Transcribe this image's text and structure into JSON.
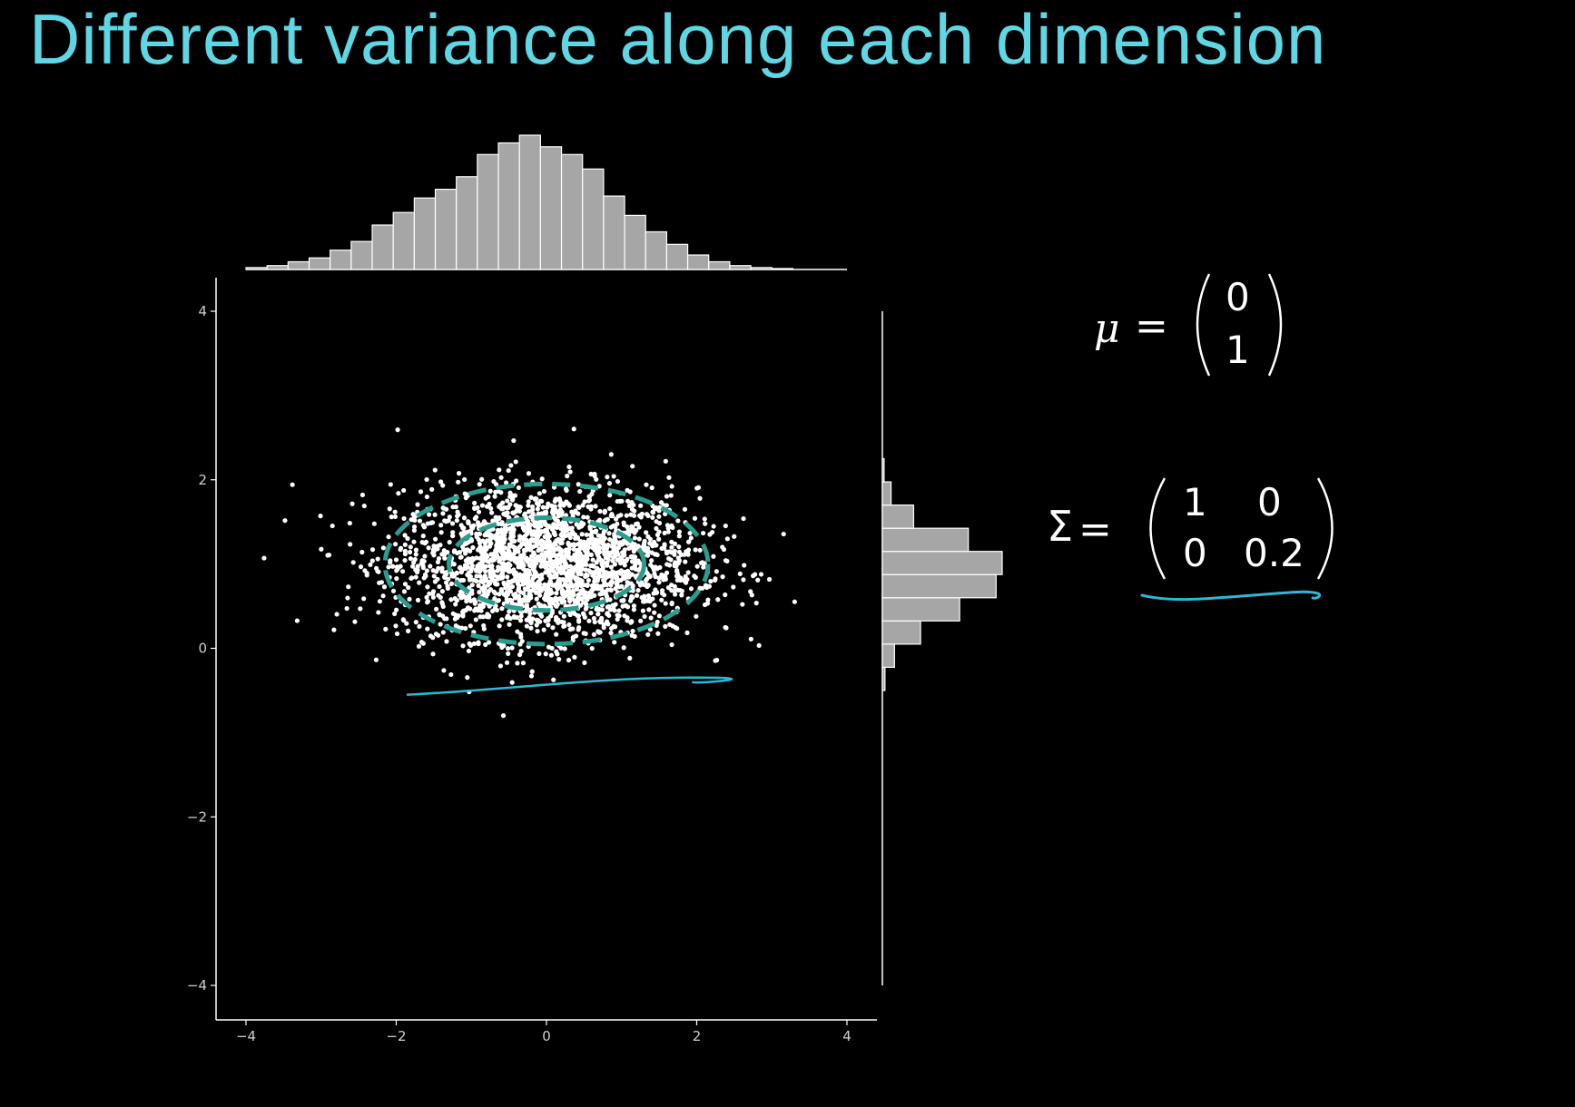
{
  "slide": {
    "title": "Different variance along each dimension"
  },
  "equations": {
    "mu": {
      "symbol": "μ",
      "equals": "=",
      "entries": [
        "0",
        "1"
      ]
    },
    "sigma": {
      "symbol": "Σ",
      "equals": "=",
      "entries": [
        [
          "1",
          "0"
        ],
        [
          "0",
          "0.2"
        ]
      ]
    }
  },
  "colors": {
    "background": "#000000",
    "title": "#5fd6e3",
    "points": "#ffffff",
    "ellipses": "#2a9d8f",
    "annotation": "#2fb7d6",
    "histogram_fill": "#a6a6a6",
    "histogram_stroke": "#ffffff"
  },
  "chart_data": [
    {
      "type": "scatter",
      "description_kind": "bivariate normal sample with marginal histograms",
      "xlim": [
        -4,
        4
      ],
      "ylim": [
        -4,
        4
      ],
      "x_ticks": [
        "−4",
        "−2",
        "0",
        "2",
        "4"
      ],
      "y_ticks": [
        "4",
        "2",
        "0",
        "−2",
        "−4"
      ],
      "x_tick_values": [
        -4,
        -2,
        0,
        2,
        4
      ],
      "y_tick_values": [
        4,
        2,
        0,
        -2,
        -4
      ],
      "grid": false,
      "mean": [
        0,
        1
      ],
      "covariance": [
        [
          1,
          0
        ],
        [
          0,
          0.2
        ]
      ],
      "contours": [
        {
          "center": [
            0,
            1
          ],
          "semi_axes": [
            1.3,
            0.55
          ],
          "style": "dashed"
        },
        {
          "center": [
            0,
            1
          ],
          "semi_axes": [
            2.15,
            0.95
          ],
          "style": "dashed"
        }
      ],
      "sample_count": 2500,
      "annotation_stroke": {
        "from": [
          -1.85,
          -0.55
        ],
        "to": [
          1.95,
          -0.38
        ]
      }
    },
    {
      "type": "bar",
      "orientation": "vertical",
      "role": "marginal histogram of x",
      "bin_edges_start": -4,
      "bin_width": 0.28,
      "values": [
        2,
        4,
        8,
        12,
        20,
        29,
        46,
        59,
        74,
        83,
        96,
        119,
        131,
        139,
        127,
        119,
        104,
        76,
        56,
        39,
        26,
        15,
        8,
        4,
        2,
        1
      ]
    },
    {
      "type": "bar",
      "orientation": "horizontal",
      "role": "marginal histogram of y",
      "bin_edges_start": -0.5,
      "bin_width": 0.275,
      "values": [
        3,
        14,
        44,
        89,
        131,
        138,
        99,
        36,
        10,
        2
      ]
    },
    {
      "type": "bar",
      "role": "data for annotation underline",
      "values": []
    }
  ]
}
